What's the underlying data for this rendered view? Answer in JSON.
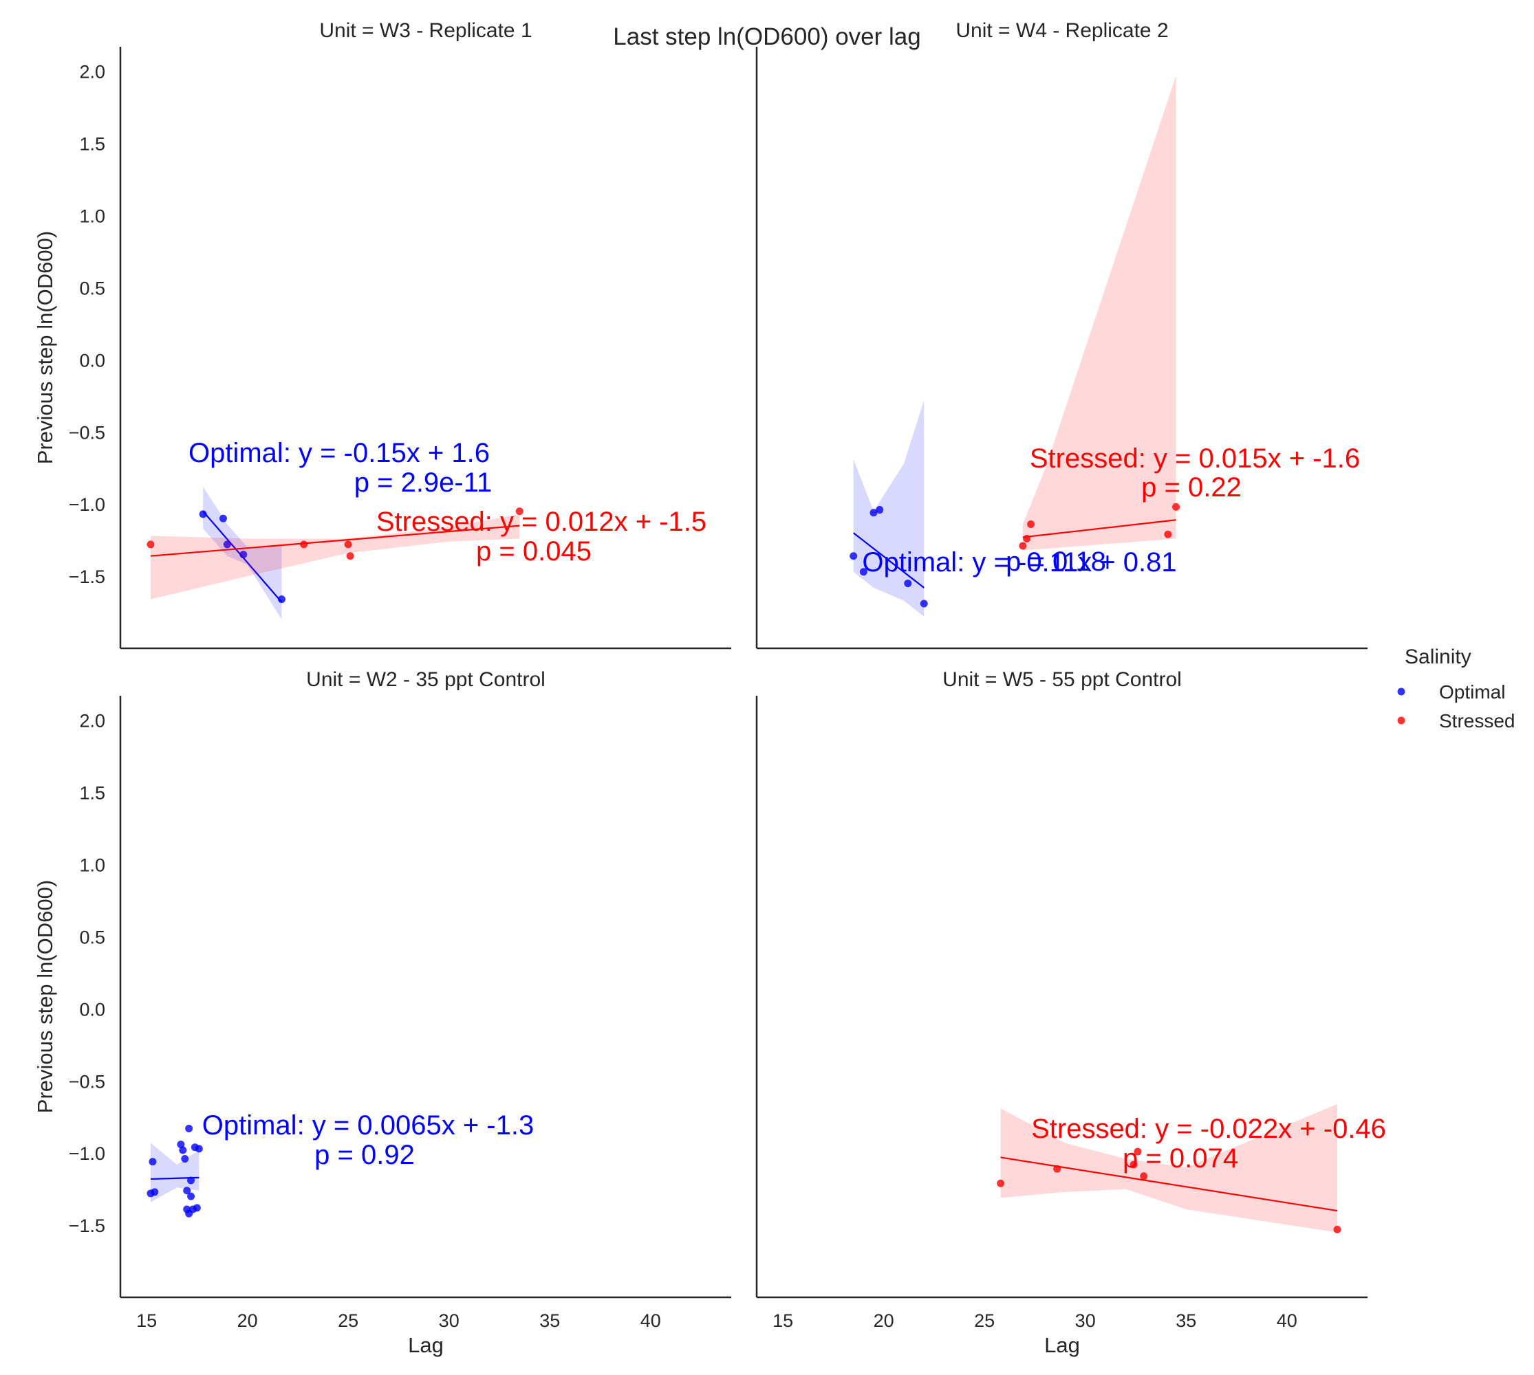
{
  "figure": {
    "title": "Last step ln(OD600) over lag",
    "xlabel": "Lag",
    "ylabel": "Previous step ln(OD600)"
  },
  "legend": {
    "title": "Salinity",
    "items": [
      {
        "label": "Optimal",
        "color": "#0000ff"
      },
      {
        "label": "Stressed",
        "color": "#ff0000"
      }
    ]
  },
  "chart_data": {
    "type": "scatter",
    "xlim": [
      13.7,
      44.0
    ],
    "ylim": [
      -2.0,
      2.17
    ],
    "xticks": [
      15,
      20,
      25,
      30,
      35,
      40
    ],
    "yticks": [
      -1.5,
      -1.0,
      -0.5,
      0.0,
      0.5,
      1.0,
      1.5,
      2.0
    ],
    "grid": false,
    "legend_position": "right",
    "panels": [
      {
        "title": "Unit = W3 - Replicate 1",
        "row": 0,
        "col": 0,
        "series": [
          {
            "name": "Optimal",
            "color": "#0000ff",
            "points": [
              [
                17.8,
                -1.07
              ],
              [
                18.8,
                -1.1
              ],
              [
                19.0,
                -1.28
              ],
              [
                19.8,
                -1.35
              ],
              [
                21.7,
                -1.66
              ]
            ],
            "fit": {
              "slope": -0.15,
              "intercept": 1.6,
              "x_range": [
                17.8,
                21.7
              ],
              "y_start": -1.05,
              "y_end": -1.68
            },
            "ci": [
              [
                17.8,
                -0.88,
                -1.17
              ],
              [
                19.0,
                -1.14,
                -1.36
              ],
              [
                20.0,
                -1.3,
                -1.42
              ],
              [
                21.7,
                -1.28,
                -1.8
              ]
            ],
            "annotation": [
              "Optimal: y = -0.15x + 1.6",
              "p = 2.9e-11"
            ]
          },
          {
            "name": "Stressed",
            "color": "#ff0000",
            "points": [
              [
                15.2,
                -1.28
              ],
              [
                22.8,
                -1.28
              ],
              [
                25.0,
                -1.28
              ],
              [
                25.1,
                -1.36
              ],
              [
                33.5,
                -1.05
              ]
            ],
            "fit": {
              "slope": 0.012,
              "intercept": -1.5,
              "x_range": [
                15.2,
                33.5
              ],
              "y_start": -1.36,
              "y_end": -1.15
            },
            "ci": [
              [
                15.2,
                -1.22,
                -1.66
              ],
              [
                20.0,
                -1.24,
                -1.5
              ],
              [
                25.0,
                -1.24,
                -1.34
              ],
              [
                30.0,
                -1.16,
                -1.26
              ],
              [
                33.5,
                -1.07,
                -1.24
              ]
            ],
            "annotation": [
              "Stressed: y = 0.012x + -1.5",
              "p = 0.045"
            ]
          }
        ]
      },
      {
        "title": "Unit = W4 - Replicate 2",
        "row": 0,
        "col": 1,
        "series": [
          {
            "name": "Optimal",
            "color": "#0000ff",
            "points": [
              [
                18.5,
                -1.36
              ],
              [
                19.0,
                -1.47
              ],
              [
                19.5,
                -1.06
              ],
              [
                19.8,
                -1.04
              ],
              [
                21.2,
                -1.55
              ],
              [
                22.0,
                -1.69
              ]
            ],
            "fit": {
              "slope": -0.11,
              "intercept": 0.81,
              "x_range": [
                18.5,
                22.0
              ],
              "y_start": -1.2,
              "y_end": -1.58
            },
            "ci": [
              [
                18.5,
                -0.69,
                -1.47
              ],
              [
                19.5,
                -1.05,
                -1.58
              ],
              [
                21.0,
                -0.72,
                -1.67
              ],
              [
                22.0,
                -0.28,
                -1.78
              ]
            ],
            "annotation": [
              "Optimal: y = -0.11x + 0.81",
              "p = 0.18"
            ]
          },
          {
            "name": "Stressed",
            "color": "#ff0000",
            "points": [
              [
                26.9,
                -1.29
              ],
              [
                27.1,
                -1.24
              ],
              [
                27.3,
                -1.14
              ],
              [
                34.1,
                -1.21
              ],
              [
                34.5,
                -1.02
              ]
            ],
            "fit": {
              "slope": 0.015,
              "intercept": -1.6,
              "x_range": [
                26.9,
                34.5
              ],
              "y_start": -1.23,
              "y_end": -1.11
            },
            "ci": [
              [
                26.9,
                -1.14,
                -1.32
              ],
              [
                28.0,
                -0.76,
                -1.31
              ],
              [
                34.5,
                1.97,
                -1.24
              ]
            ],
            "annotation": [
              "Stressed: y = 0.015x + -1.6",
              "p = 0.22"
            ]
          }
        ]
      },
      {
        "title": "Unit = W2 - 35 ppt Control",
        "row": 1,
        "col": 0,
        "series": [
          {
            "name": "Optimal",
            "color": "#0000ff",
            "points": [
              [
                15.2,
                -1.28
              ],
              [
                15.3,
                -1.06
              ],
              [
                15.4,
                -1.27
              ],
              [
                16.7,
                -0.94
              ],
              [
                16.8,
                -0.98
              ],
              [
                16.9,
                -1.04
              ],
              [
                17.0,
                -1.26
              ],
              [
                17.0,
                -1.39
              ],
              [
                17.1,
                -1.42
              ],
              [
                17.1,
                -0.83
              ],
              [
                17.2,
                -1.19
              ],
              [
                17.2,
                -1.3
              ],
              [
                17.3,
                -1.39
              ],
              [
                17.4,
                -0.96
              ],
              [
                17.5,
                -1.38
              ],
              [
                17.6,
                -0.97
              ]
            ],
            "fit": {
              "slope": 0.0065,
              "intercept": -1.3,
              "x_range": [
                15.2,
                17.6
              ],
              "y_start": -1.18,
              "y_end": -1.17
            },
            "ci": [
              [
                15.2,
                -0.93,
                -1.34
              ],
              [
                16.5,
                -1.08,
                -1.24
              ],
              [
                17.6,
                -0.98,
                -1.26
              ]
            ],
            "annotation": [
              "Optimal: y = 0.0065x + -1.3",
              "p = 0.92"
            ]
          }
        ]
      },
      {
        "title": "Unit = W5 - 55 ppt Control",
        "row": 1,
        "col": 1,
        "series": [
          {
            "name": "Stressed",
            "color": "#ff0000",
            "points": [
              [
                25.8,
                -1.21
              ],
              [
                28.6,
                -1.11
              ],
              [
                32.4,
                -1.08
              ],
              [
                32.6,
                -0.99
              ],
              [
                32.9,
                -1.16
              ],
              [
                42.5,
                -1.53
              ]
            ],
            "fit": {
              "slope": -0.022,
              "intercept": -0.46,
              "x_range": [
                25.8,
                42.5
              ],
              "y_start": -1.03,
              "y_end": -1.4
            },
            "ci": [
              [
                25.8,
                -0.69,
                -1.31
              ],
              [
                29.0,
                -0.93,
                -1.27
              ],
              [
                32.0,
                -1.04,
                -1.25
              ],
              [
                35.0,
                -1.1,
                -1.39
              ],
              [
                42.5,
                -0.66,
                -1.55
              ]
            ],
            "annotation": [
              "Stressed: y = -0.022x + -0.46",
              "p = 0.074"
            ]
          }
        ]
      }
    ]
  }
}
